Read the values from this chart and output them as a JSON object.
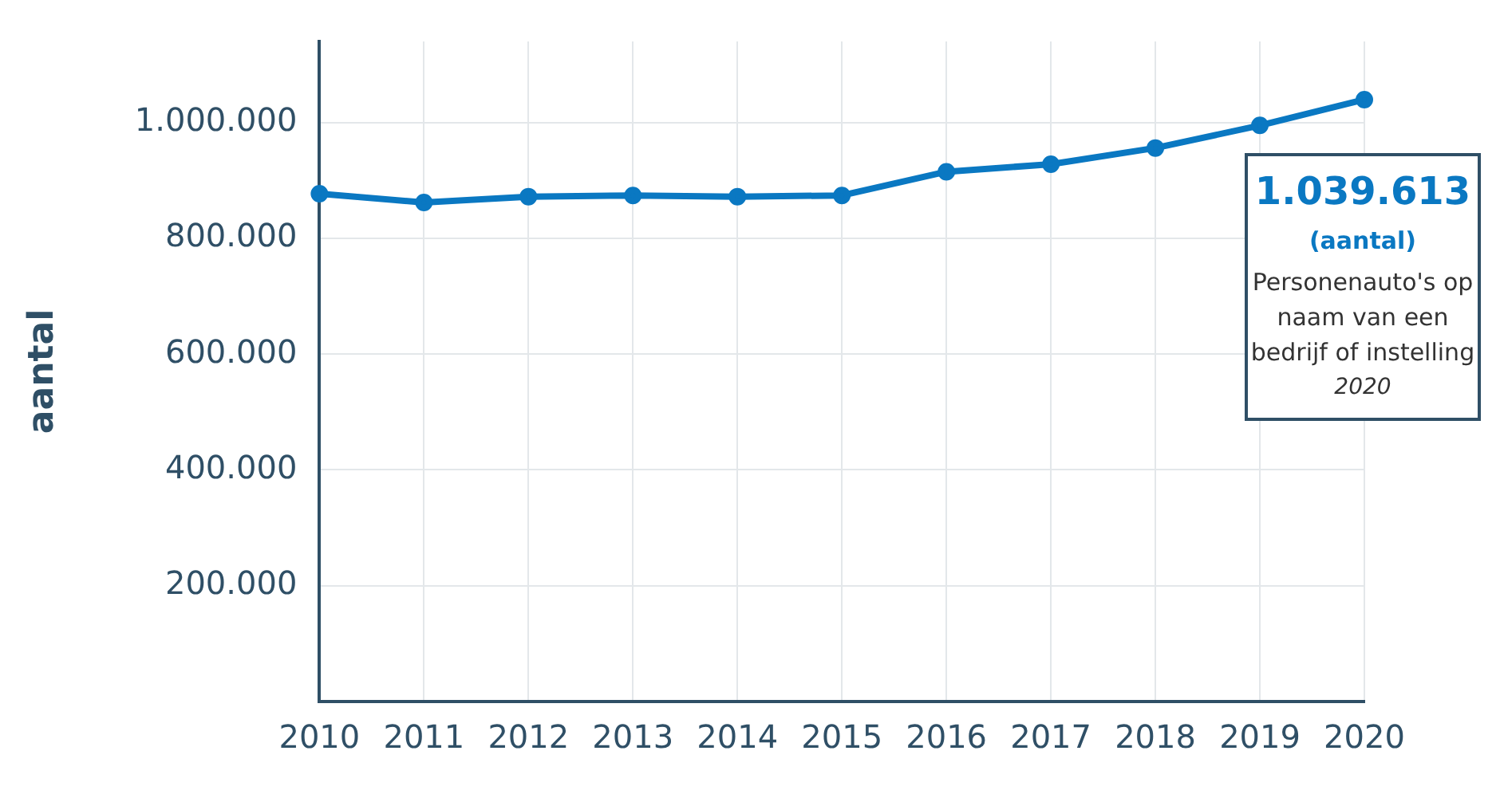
{
  "chart_data": {
    "type": "line",
    "ylabel": "aantal",
    "categories": [
      "2010",
      "2011",
      "2012",
      "2013",
      "2014",
      "2015",
      "2016",
      "2017",
      "2018",
      "2019",
      "2020"
    ],
    "series": [
      {
        "color": "#0a78c2",
        "values": [
          877000,
          862000,
          872000,
          874000,
          872000,
          874000,
          915000,
          928000,
          956000,
          995000,
          1039613
        ],
        "value_labels": [
          null,
          null,
          null,
          null,
          null,
          null,
          null,
          null,
          null,
          null,
          "1.039.613"
        ]
      }
    ],
    "ylim": [
      0,
      1140000
    ],
    "yticks": [
      {
        "value": 200000,
        "label": "200.000"
      },
      {
        "value": 400000,
        "label": "400.000"
      },
      {
        "value": 600000,
        "label": "600.000"
      },
      {
        "value": 800000,
        "label": "800.000"
      },
      {
        "value": 1000000,
        "label": "1.000.000"
      }
    ],
    "annotations": [
      "(aantal)",
      "Personenauto's op naam van een bedrijf of instelling",
      "2020"
    ],
    "grid": true,
    "marker": "circle",
    "line_style": "solid"
  }
}
